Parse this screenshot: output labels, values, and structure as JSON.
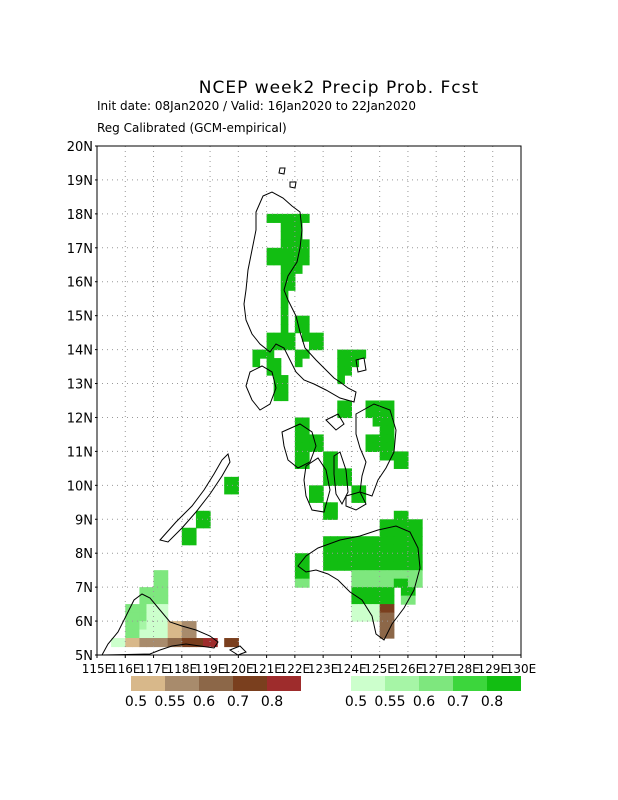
{
  "header": {
    "title": "NCEP week2 Precip Prob. Fcst",
    "subtitle_1": "Init date: 08Jan2020 / Valid: 16Jan2020 to 22Jan2020",
    "subtitle_2": "Reg Calibrated (GCM-empirical)"
  },
  "map_extent": {
    "lon": [
      115,
      130
    ],
    "lat": [
      5,
      20
    ]
  },
  "lat_labels": [
    "5N",
    "6N",
    "7N",
    "8N",
    "9N",
    "10N",
    "11N",
    "12N",
    "13N",
    "14N",
    "15N",
    "16N",
    "17N",
    "18N",
    "19N",
    "20N"
  ],
  "lon_labels": [
    "115E",
    "116E",
    "117E",
    "118E",
    "119E",
    "120E",
    "121E",
    "122E",
    "123E",
    "124E",
    "125E",
    "126E",
    "127E",
    "128E",
    "129E",
    "130E"
  ],
  "legend_below": {
    "labels": [
      "0.5",
      "0.55",
      "0.6",
      "0.7",
      "0.8"
    ],
    "colors": [
      "#d8b88a",
      "#a88b6c",
      "#8c6748",
      "#7a3f1e",
      "#9e2c2c"
    ]
  },
  "legend_above": {
    "labels": [
      "0.5",
      "0.55",
      "0.6",
      "0.7",
      "0.8"
    ],
    "colors": [
      "#ccffcc",
      "#a6f5a6",
      "#7ee77e",
      "#3cd63c",
      "#12be12"
    ]
  },
  "grid_colors": {
    "G": "#12be12",
    "L": "#7ee77e",
    "P": "#ccffcc",
    "p": "#a6f5a6",
    "T": "#d8b88a",
    "B": "#a88b6c",
    "D": "#8c6748",
    "K": "#7a3f1e",
    "R": "#9e2c2c"
  },
  "cells": [
    [
      121.0,
      17.75,
      "G"
    ],
    [
      121.25,
      17.75,
      "G"
    ],
    [
      121.5,
      17.75,
      "G"
    ],
    [
      121.75,
      17.75,
      "G"
    ],
    [
      122.0,
      17.75,
      "G"
    ],
    [
      122.25,
      17.75,
      "G"
    ],
    [
      121.5,
      17.5,
      "G"
    ],
    [
      121.75,
      17.5,
      "G"
    ],
    [
      122.0,
      17.5,
      "G"
    ],
    [
      121.5,
      17.25,
      "G"
    ],
    [
      121.75,
      17.25,
      "G"
    ],
    [
      122.0,
      17.25,
      "G"
    ],
    [
      121.5,
      17.0,
      "G"
    ],
    [
      121.75,
      17.0,
      "G"
    ],
    [
      122.0,
      17.0,
      "G"
    ],
    [
      122.25,
      17.0,
      "G"
    ],
    [
      121.0,
      16.75,
      "G"
    ],
    [
      121.25,
      16.75,
      "G"
    ],
    [
      121.5,
      16.75,
      "G"
    ],
    [
      121.75,
      16.75,
      "G"
    ],
    [
      122.0,
      16.75,
      "G"
    ],
    [
      122.25,
      16.75,
      "G"
    ],
    [
      121.0,
      16.5,
      "G"
    ],
    [
      121.25,
      16.5,
      "G"
    ],
    [
      121.5,
      16.5,
      "G"
    ],
    [
      121.75,
      16.5,
      "G"
    ],
    [
      122.0,
      16.5,
      "G"
    ],
    [
      122.25,
      16.5,
      "G"
    ],
    [
      121.5,
      16.25,
      "G"
    ],
    [
      121.75,
      16.25,
      "G"
    ],
    [
      122.0,
      16.25,
      "G"
    ],
    [
      121.5,
      16.0,
      "G"
    ],
    [
      121.75,
      16.0,
      "G"
    ],
    [
      121.5,
      15.75,
      "G"
    ],
    [
      121.75,
      15.75,
      "G"
    ],
    [
      121.5,
      15.5,
      "G"
    ],
    [
      121.5,
      15.25,
      "G"
    ],
    [
      121.5,
      15.0,
      "G"
    ],
    [
      121.5,
      14.75,
      "G"
    ],
    [
      121.5,
      14.5,
      "G"
    ],
    [
      122.0,
      14.75,
      "G"
    ],
    [
      122.25,
      14.75,
      "G"
    ],
    [
      122.0,
      14.5,
      "G"
    ],
    [
      122.25,
      14.5,
      "G"
    ],
    [
      121.0,
      14.25,
      "G"
    ],
    [
      121.25,
      14.25,
      "G"
    ],
    [
      121.5,
      14.25,
      "G"
    ],
    [
      121.75,
      14.25,
      "G"
    ],
    [
      121.0,
      14.0,
      "G"
    ],
    [
      121.25,
      14.0,
      "G"
    ],
    [
      121.5,
      14.0,
      "G"
    ],
    [
      121.75,
      14.0,
      "G"
    ],
    [
      122.25,
      14.25,
      "G"
    ],
    [
      122.5,
      14.25,
      "G"
    ],
    [
      122.75,
      14.25,
      "G"
    ],
    [
      122.5,
      14.0,
      "G"
    ],
    [
      122.75,
      14.0,
      "G"
    ],
    [
      120.5,
      13.75,
      "G"
    ],
    [
      120.75,
      13.75,
      "G"
    ],
    [
      120.5,
      13.5,
      "G"
    ],
    [
      121.0,
      13.75,
      "G"
    ],
    [
      121.0,
      13.5,
      "G"
    ],
    [
      121.25,
      13.5,
      "G"
    ],
    [
      121.0,
      13.25,
      "G"
    ],
    [
      121.25,
      13.25,
      "G"
    ],
    [
      121.25,
      13.0,
      "G"
    ],
    [
      121.5,
      13.0,
      "G"
    ],
    [
      121.25,
      12.75,
      "G"
    ],
    [
      121.5,
      12.75,
      "G"
    ],
    [
      121.25,
      12.5,
      "G"
    ],
    [
      121.5,
      12.5,
      "G"
    ],
    [
      122.0,
      13.75,
      "G"
    ],
    [
      122.25,
      13.75,
      "G"
    ],
    [
      122.0,
      13.5,
      "G"
    ],
    [
      123.5,
      13.75,
      "G"
    ],
    [
      123.75,
      13.75,
      "G"
    ],
    [
      124.0,
      13.75,
      "G"
    ],
    [
      124.25,
      13.75,
      "G"
    ],
    [
      123.5,
      13.5,
      "G"
    ],
    [
      123.75,
      13.5,
      "G"
    ],
    [
      124.0,
      13.5,
      "G"
    ],
    [
      123.5,
      13.25,
      "G"
    ],
    [
      123.75,
      13.25,
      "G"
    ],
    [
      123.5,
      13.0,
      "G"
    ],
    [
      123.5,
      12.25,
      "G"
    ],
    [
      123.75,
      12.25,
      "G"
    ],
    [
      123.5,
      12.0,
      "G"
    ],
    [
      123.75,
      12.0,
      "G"
    ],
    [
      124.5,
      12.25,
      "G"
    ],
    [
      124.75,
      12.25,
      "G"
    ],
    [
      125.0,
      12.25,
      "G"
    ],
    [
      125.25,
      12.25,
      "G"
    ],
    [
      124.5,
      12.0,
      "G"
    ],
    [
      124.75,
      12.0,
      "G"
    ],
    [
      125.0,
      12.0,
      "G"
    ],
    [
      125.25,
      12.0,
      "G"
    ],
    [
      124.75,
      11.75,
      "G"
    ],
    [
      125.0,
      11.75,
      "G"
    ],
    [
      125.25,
      11.75,
      "G"
    ],
    [
      125.0,
      11.5,
      "G"
    ],
    [
      125.25,
      11.5,
      "G"
    ],
    [
      124.5,
      11.25,
      "G"
    ],
    [
      124.75,
      11.25,
      "G"
    ],
    [
      125.0,
      11.25,
      "G"
    ],
    [
      125.25,
      11.25,
      "G"
    ],
    [
      124.5,
      11.0,
      "G"
    ],
    [
      124.75,
      11.0,
      "G"
    ],
    [
      125.0,
      11.0,
      "G"
    ],
    [
      125.25,
      11.0,
      "G"
    ],
    [
      125.0,
      10.75,
      "G"
    ],
    [
      125.25,
      10.75,
      "G"
    ],
    [
      125.5,
      10.75,
      "G"
    ],
    [
      125.75,
      10.75,
      "G"
    ],
    [
      125.5,
      10.5,
      "G"
    ],
    [
      125.75,
      10.5,
      "G"
    ],
    [
      122.0,
      11.75,
      "G"
    ],
    [
      122.25,
      11.75,
      "G"
    ],
    [
      122.0,
      11.5,
      "G"
    ],
    [
      122.25,
      11.5,
      "G"
    ],
    [
      122.0,
      11.25,
      "G"
    ],
    [
      122.25,
      11.25,
      "G"
    ],
    [
      122.5,
      11.25,
      "G"
    ],
    [
      122.75,
      11.25,
      "G"
    ],
    [
      122.0,
      11.0,
      "G"
    ],
    [
      122.25,
      11.0,
      "G"
    ],
    [
      122.5,
      11.0,
      "G"
    ],
    [
      122.75,
      11.0,
      "G"
    ],
    [
      122.0,
      10.75,
      "G"
    ],
    [
      122.25,
      10.75,
      "G"
    ],
    [
      122.0,
      10.5,
      "G"
    ],
    [
      122.25,
      10.5,
      "G"
    ],
    [
      123.0,
      10.75,
      "G"
    ],
    [
      123.25,
      10.75,
      "G"
    ],
    [
      123.0,
      10.5,
      "G"
    ],
    [
      123.25,
      10.5,
      "G"
    ],
    [
      123.0,
      10.25,
      "G"
    ],
    [
      123.25,
      10.25,
      "G"
    ],
    [
      123.5,
      10.25,
      "G"
    ],
    [
      123.75,
      10.25,
      "G"
    ],
    [
      123.0,
      10.0,
      "G"
    ],
    [
      123.25,
      10.0,
      "G"
    ],
    [
      123.5,
      10.0,
      "G"
    ],
    [
      123.75,
      10.0,
      "G"
    ],
    [
      122.5,
      9.75,
      "G"
    ],
    [
      122.75,
      9.75,
      "G"
    ],
    [
      122.5,
      9.5,
      "G"
    ],
    [
      122.75,
      9.5,
      "G"
    ],
    [
      124.0,
      9.75,
      "G"
    ],
    [
      124.25,
      9.75,
      "G"
    ],
    [
      124.0,
      9.5,
      "G"
    ],
    [
      124.25,
      9.5,
      "G"
    ],
    [
      123.0,
      9.25,
      "G"
    ],
    [
      123.25,
      9.25,
      "G"
    ],
    [
      123.0,
      9.0,
      "G"
    ],
    [
      123.25,
      9.0,
      "G"
    ],
    [
      119.5,
      10.0,
      "G"
    ],
    [
      119.75,
      10.0,
      "G"
    ],
    [
      119.5,
      9.75,
      "G"
    ],
    [
      119.75,
      9.75,
      "G"
    ],
    [
      118.5,
      9.0,
      "G"
    ],
    [
      118.75,
      9.0,
      "G"
    ],
    [
      118.5,
      8.75,
      "G"
    ],
    [
      118.75,
      8.75,
      "G"
    ],
    [
      118.0,
      8.5,
      "G"
    ],
    [
      118.25,
      8.5,
      "G"
    ],
    [
      118.0,
      8.25,
      "G"
    ],
    [
      118.25,
      8.25,
      "G"
    ],
    [
      125.5,
      9.0,
      "G"
    ],
    [
      125.75,
      9.0,
      "G"
    ],
    [
      125.0,
      8.75,
      "G"
    ],
    [
      125.25,
      8.75,
      "G"
    ],
    [
      125.5,
      8.75,
      "G"
    ],
    [
      125.75,
      8.75,
      "G"
    ],
    [
      126.0,
      8.75,
      "G"
    ],
    [
      126.25,
      8.75,
      "G"
    ],
    [
      125.0,
      8.5,
      "G"
    ],
    [
      125.25,
      8.5,
      "G"
    ],
    [
      125.5,
      8.5,
      "G"
    ],
    [
      125.75,
      8.5,
      "G"
    ],
    [
      126.0,
      8.5,
      "G"
    ],
    [
      126.25,
      8.5,
      "G"
    ],
    [
      123.0,
      8.25,
      "G"
    ],
    [
      123.25,
      8.25,
      "G"
    ],
    [
      123.5,
      8.25,
      "G"
    ],
    [
      123.75,
      8.25,
      "G"
    ],
    [
      124.0,
      8.25,
      "G"
    ],
    [
      124.25,
      8.25,
      "G"
    ],
    [
      124.5,
      8.25,
      "G"
    ],
    [
      124.75,
      8.25,
      "G"
    ],
    [
      125.0,
      8.25,
      "G"
    ],
    [
      125.25,
      8.25,
      "G"
    ],
    [
      125.5,
      8.25,
      "G"
    ],
    [
      125.75,
      8.25,
      "G"
    ],
    [
      126.0,
      8.25,
      "G"
    ],
    [
      126.25,
      8.25,
      "G"
    ],
    [
      123.0,
      8.0,
      "G"
    ],
    [
      123.25,
      8.0,
      "G"
    ],
    [
      123.5,
      8.0,
      "G"
    ],
    [
      123.75,
      8.0,
      "G"
    ],
    [
      124.0,
      8.0,
      "G"
    ],
    [
      124.25,
      8.0,
      "G"
    ],
    [
      124.5,
      8.0,
      "G"
    ],
    [
      124.75,
      8.0,
      "G"
    ],
    [
      125.0,
      8.0,
      "G"
    ],
    [
      125.25,
      8.0,
      "G"
    ],
    [
      125.5,
      8.0,
      "G"
    ],
    [
      125.75,
      8.0,
      "G"
    ],
    [
      126.0,
      8.0,
      "G"
    ],
    [
      126.25,
      8.0,
      "G"
    ],
    [
      123.0,
      7.75,
      "G"
    ],
    [
      123.25,
      7.75,
      "G"
    ],
    [
      123.5,
      7.75,
      "G"
    ],
    [
      123.75,
      7.75,
      "G"
    ],
    [
      124.0,
      7.75,
      "G"
    ],
    [
      124.25,
      7.75,
      "G"
    ],
    [
      124.5,
      7.75,
      "G"
    ],
    [
      124.75,
      7.75,
      "G"
    ],
    [
      125.0,
      7.75,
      "G"
    ],
    [
      125.25,
      7.75,
      "G"
    ],
    [
      125.5,
      7.75,
      "G"
    ],
    [
      125.75,
      7.75,
      "G"
    ],
    [
      126.0,
      7.75,
      "G"
    ],
    [
      126.25,
      7.75,
      "G"
    ],
    [
      123.0,
      7.5,
      "G"
    ],
    [
      123.25,
      7.5,
      "G"
    ],
    [
      123.5,
      7.5,
      "G"
    ],
    [
      123.75,
      7.5,
      "G"
    ],
    [
      124.0,
      7.5,
      "G"
    ],
    [
      124.25,
      7.5,
      "G"
    ],
    [
      124.5,
      7.5,
      "G"
    ],
    [
      124.75,
      7.5,
      "G"
    ],
    [
      125.0,
      7.5,
      "G"
    ],
    [
      125.25,
      7.5,
      "G"
    ],
    [
      125.5,
      7.5,
      "G"
    ],
    [
      125.75,
      7.5,
      "G"
    ],
    [
      126.0,
      7.5,
      "G"
    ],
    [
      126.25,
      7.5,
      "G"
    ],
    [
      122.0,
      7.75,
      "G"
    ],
    [
      122.25,
      7.75,
      "G"
    ],
    [
      122.0,
      7.5,
      "G"
    ],
    [
      122.25,
      7.5,
      "G"
    ],
    [
      122.0,
      7.25,
      "G"
    ],
    [
      122.25,
      7.25,
      "G"
    ],
    [
      122.0,
      7.0,
      "L"
    ],
    [
      122.25,
      7.0,
      "L"
    ],
    [
      124.0,
      7.25,
      "L"
    ],
    [
      124.25,
      7.25,
      "L"
    ],
    [
      124.5,
      7.25,
      "L"
    ],
    [
      124.75,
      7.25,
      "L"
    ],
    [
      125.0,
      7.25,
      "L"
    ],
    [
      125.25,
      7.25,
      "L"
    ],
    [
      124.0,
      7.0,
      "L"
    ],
    [
      124.25,
      7.0,
      "L"
    ],
    [
      124.5,
      7.0,
      "L"
    ],
    [
      124.75,
      7.0,
      "L"
    ],
    [
      125.0,
      7.0,
      "L"
    ],
    [
      125.25,
      7.0,
      "L"
    ],
    [
      124.0,
      6.75,
      "G"
    ],
    [
      124.25,
      6.75,
      "G"
    ],
    [
      124.5,
      6.75,
      "G"
    ],
    [
      124.75,
      6.75,
      "G"
    ],
    [
      124.0,
      6.5,
      "G"
    ],
    [
      124.25,
      6.5,
      "G"
    ],
    [
      124.5,
      6.5,
      "G"
    ],
    [
      124.75,
      6.5,
      "G"
    ],
    [
      125.0,
      6.75,
      "G"
    ],
    [
      125.25,
      6.75,
      "G"
    ],
    [
      125.0,
      6.5,
      "G"
    ],
    [
      125.25,
      6.5,
      "G"
    ],
    [
      125.5,
      7.25,
      "L"
    ],
    [
      125.75,
      7.25,
      "L"
    ],
    [
      125.5,
      7.0,
      "G"
    ],
    [
      125.75,
      7.0,
      "G"
    ],
    [
      126.0,
      7.25,
      "L"
    ],
    [
      126.25,
      7.25,
      "L"
    ],
    [
      126.0,
      7.0,
      "L"
    ],
    [
      126.25,
      7.0,
      "L"
    ],
    [
      125.75,
      6.75,
      "G"
    ],
    [
      126.0,
      6.75,
      "G"
    ],
    [
      125.75,
      6.5,
      "L"
    ],
    [
      126.0,
      6.5,
      "L"
    ],
    [
      124.0,
      6.25,
      "P"
    ],
    [
      124.25,
      6.25,
      "P"
    ],
    [
      124.5,
      6.25,
      "P"
    ],
    [
      124.75,
      6.25,
      "P"
    ],
    [
      124.0,
      6.0,
      "P"
    ],
    [
      124.25,
      6.0,
      "P"
    ],
    [
      124.5,
      6.0,
      "P"
    ],
    [
      124.75,
      6.0,
      "P"
    ],
    [
      125.0,
      6.25,
      "K"
    ],
    [
      125.25,
      6.25,
      "K"
    ],
    [
      125.0,
      6.0,
      "D"
    ],
    [
      125.25,
      6.0,
      "D"
    ],
    [
      125.0,
      5.75,
      "D"
    ],
    [
      125.25,
      5.75,
      "D"
    ],
    [
      125.0,
      5.5,
      "D"
    ],
    [
      125.25,
      5.5,
      "D"
    ],
    [
      117.0,
      7.25,
      "L"
    ],
    [
      117.25,
      7.25,
      "L"
    ],
    [
      117.0,
      7.0,
      "L"
    ],
    [
      117.25,
      7.0,
      "L"
    ],
    [
      116.5,
      6.75,
      "L"
    ],
    [
      116.75,
      6.75,
      "L"
    ],
    [
      117.0,
      6.75,
      "L"
    ],
    [
      117.25,
      6.75,
      "L"
    ],
    [
      116.5,
      6.5,
      "L"
    ],
    [
      116.75,
      6.5,
      "L"
    ],
    [
      117.0,
      6.5,
      "L"
    ],
    [
      117.25,
      6.5,
      "L"
    ],
    [
      116.0,
      6.25,
      "L"
    ],
    [
      116.25,
      6.25,
      "L"
    ],
    [
      116.5,
      6.25,
      "L"
    ],
    [
      116.75,
      6.25,
      "P"
    ],
    [
      117.0,
      6.25,
      "P"
    ],
    [
      117.25,
      6.25,
      "P"
    ],
    [
      116.0,
      6.0,
      "L"
    ],
    [
      116.25,
      6.0,
      "L"
    ],
    [
      116.5,
      6.0,
      "L"
    ],
    [
      116.75,
      6.0,
      "P"
    ],
    [
      117.0,
      6.0,
      "P"
    ],
    [
      117.25,
      6.0,
      "P"
    ],
    [
      116.0,
      5.75,
      "L"
    ],
    [
      116.25,
      5.75,
      "L"
    ],
    [
      116.5,
      5.75,
      "p"
    ],
    [
      116.75,
      5.75,
      "P"
    ],
    [
      117.0,
      5.75,
      "P"
    ],
    [
      117.25,
      5.75,
      "P"
    ],
    [
      117.5,
      5.75,
      "T"
    ],
    [
      117.75,
      5.75,
      "T"
    ],
    [
      118.0,
      5.75,
      "B"
    ],
    [
      118.25,
      5.75,
      "B"
    ],
    [
      116.0,
      5.5,
      "L"
    ],
    [
      116.25,
      5.5,
      "L"
    ],
    [
      116.5,
      5.5,
      "P"
    ],
    [
      116.75,
      5.5,
      "P"
    ],
    [
      117.0,
      5.5,
      "P"
    ],
    [
      117.25,
      5.5,
      "P"
    ],
    [
      117.5,
      5.5,
      "T"
    ],
    [
      117.75,
      5.5,
      "T"
    ],
    [
      118.0,
      5.5,
      "B"
    ],
    [
      118.25,
      5.5,
      "B"
    ],
    [
      115.5,
      5.25,
      "P"
    ],
    [
      115.75,
      5.25,
      "P"
    ],
    [
      116.0,
      5.25,
      "T"
    ],
    [
      116.25,
      5.25,
      "T"
    ],
    [
      116.5,
      5.25,
      "B"
    ],
    [
      116.75,
      5.25,
      "B"
    ],
    [
      117.0,
      5.25,
      "B"
    ],
    [
      117.25,
      5.25,
      "B"
    ],
    [
      117.5,
      5.25,
      "D"
    ],
    [
      117.75,
      5.25,
      "D"
    ],
    [
      118.0,
      5.25,
      "K"
    ],
    [
      118.25,
      5.25,
      "K"
    ],
    [
      118.5,
      5.25,
      "K"
    ],
    [
      118.75,
      5.25,
      "R"
    ],
    [
      119.0,
      5.25,
      "R"
    ],
    [
      119.5,
      5.25,
      "K"
    ],
    [
      119.75,
      5.25,
      "K"
    ]
  ]
}
